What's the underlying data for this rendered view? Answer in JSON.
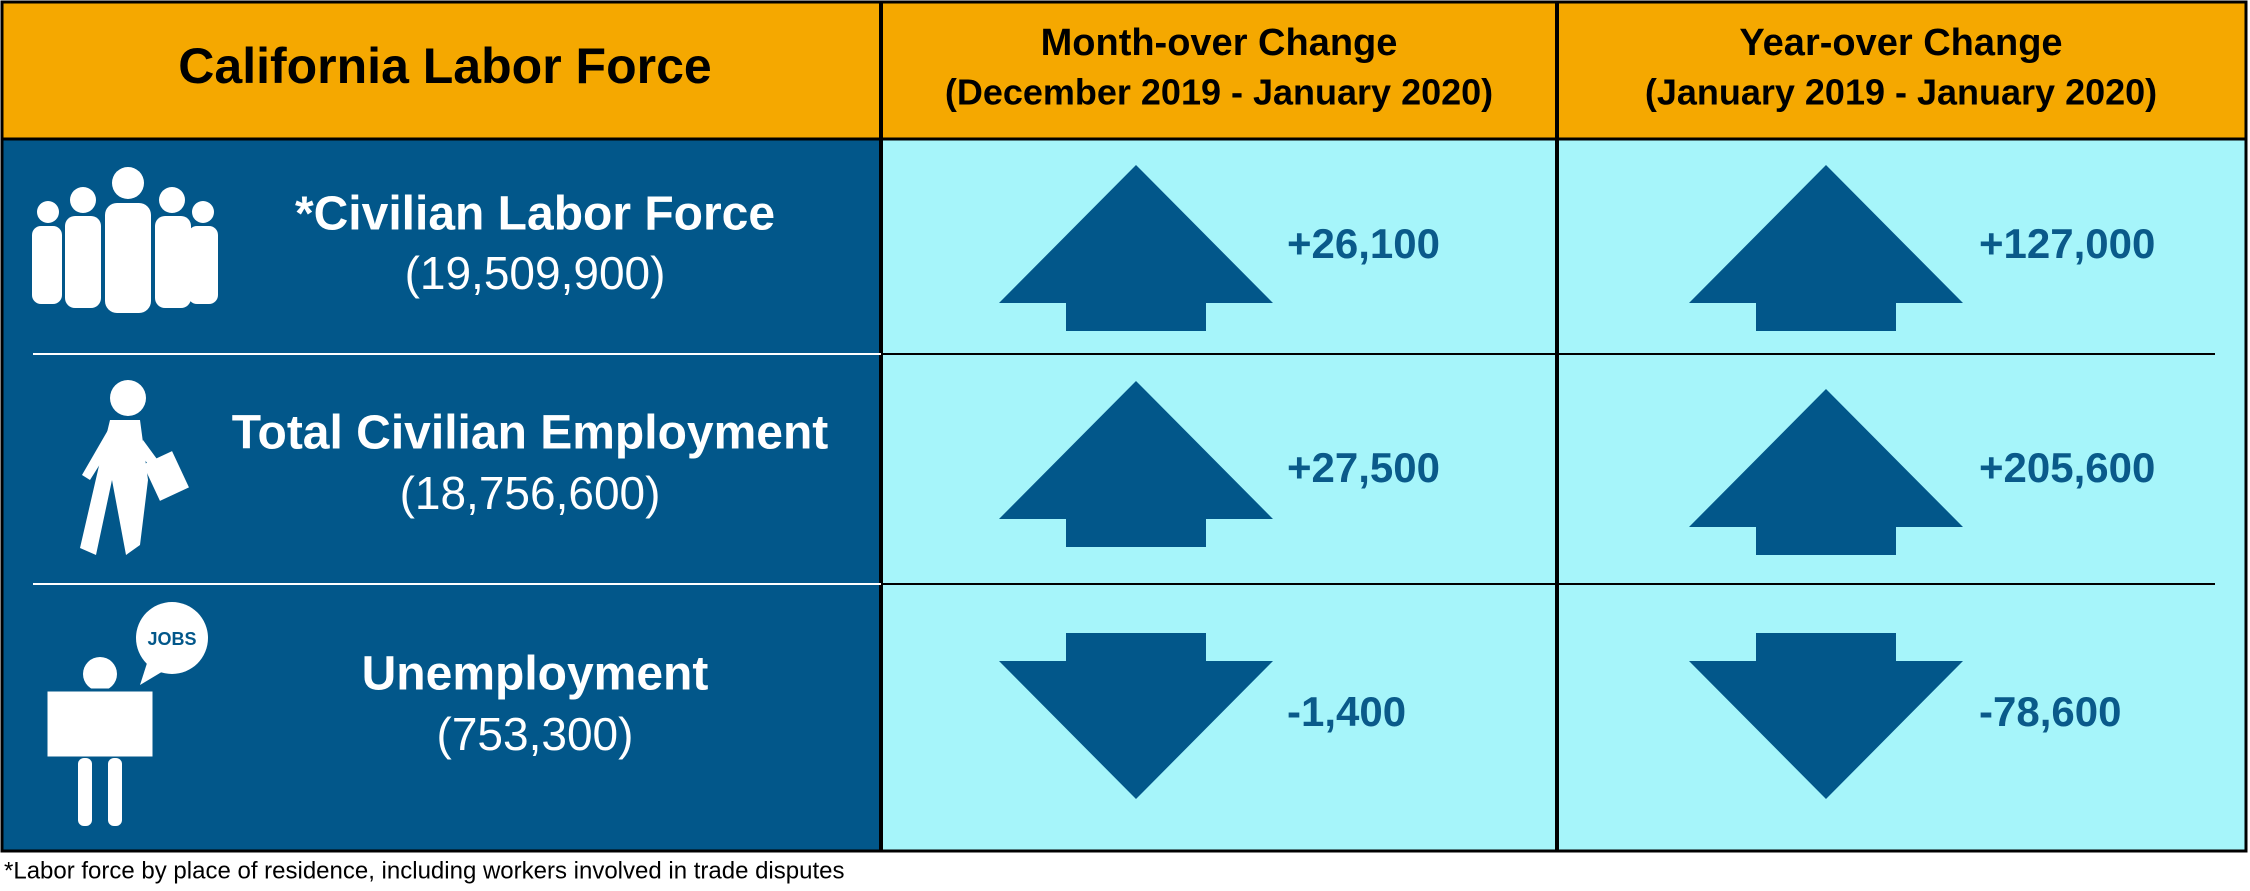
{
  "header": {
    "title": "California Labor Force",
    "columns": [
      {
        "line1": "Month-over Change",
        "line2": "(December 2019 - January 2020)"
      },
      {
        "line1": "Year-over Change",
        "line2": "(January 2019 - January 2020)"
      }
    ]
  },
  "rows": [
    {
      "label": "*Civilian Labor Force",
      "total": "(19,509,900)",
      "month_change": "+26,100",
      "year_change": "+127,000"
    },
    {
      "label": "Total Civilian Employment",
      "total": "(18,756,600)",
      "month_change": "+27,500",
      "year_change": "+205,600"
    },
    {
      "label": "Unemployment",
      "total": "(753,300)",
      "month_change": "-1,400",
      "year_change": "-78,600"
    }
  ],
  "footnote": "*Labor force by place of residence, including workers involved in trade disputes"
}
